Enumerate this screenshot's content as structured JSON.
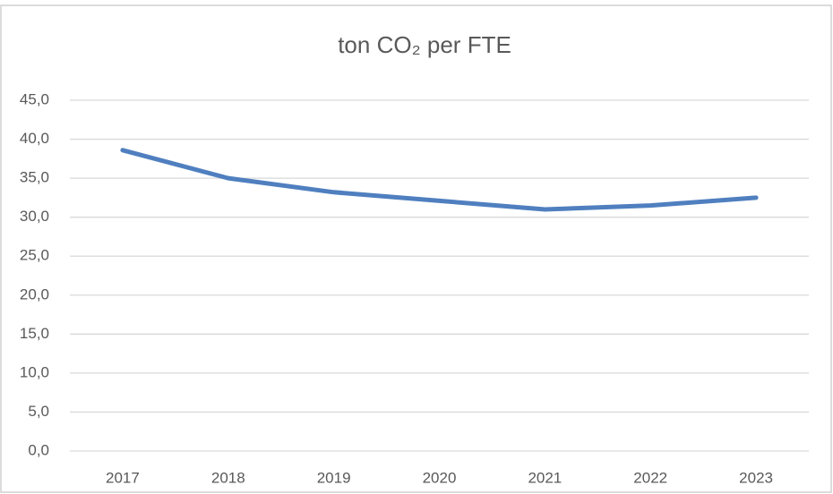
{
  "chart_data": {
    "type": "line",
    "title": "ton CO₂ per FTE",
    "categories": [
      "2017",
      "2018",
      "2019",
      "2020",
      "2021",
      "2022",
      "2023"
    ],
    "series": [
      {
        "color": "#4f7fbf",
        "values": [
          38.6,
          35.0,
          33.2,
          32.1,
          31.0,
          31.5,
          32.5
        ]
      }
    ],
    "ylim": [
      0,
      45
    ],
    "yticks": [
      {
        "value": 0,
        "label": "0,0"
      },
      {
        "value": 5,
        "label": "5,0"
      },
      {
        "value": 10,
        "label": "10,0"
      },
      {
        "value": 15,
        "label": "15,0"
      },
      {
        "value": 20,
        "label": "20,0"
      },
      {
        "value": 25,
        "label": "25,0"
      },
      {
        "value": 30,
        "label": "30,0"
      },
      {
        "value": 35,
        "label": "35,0"
      },
      {
        "value": 40,
        "label": "40,0"
      },
      {
        "value": 45,
        "label": "45,0"
      }
    ],
    "grid": true
  }
}
